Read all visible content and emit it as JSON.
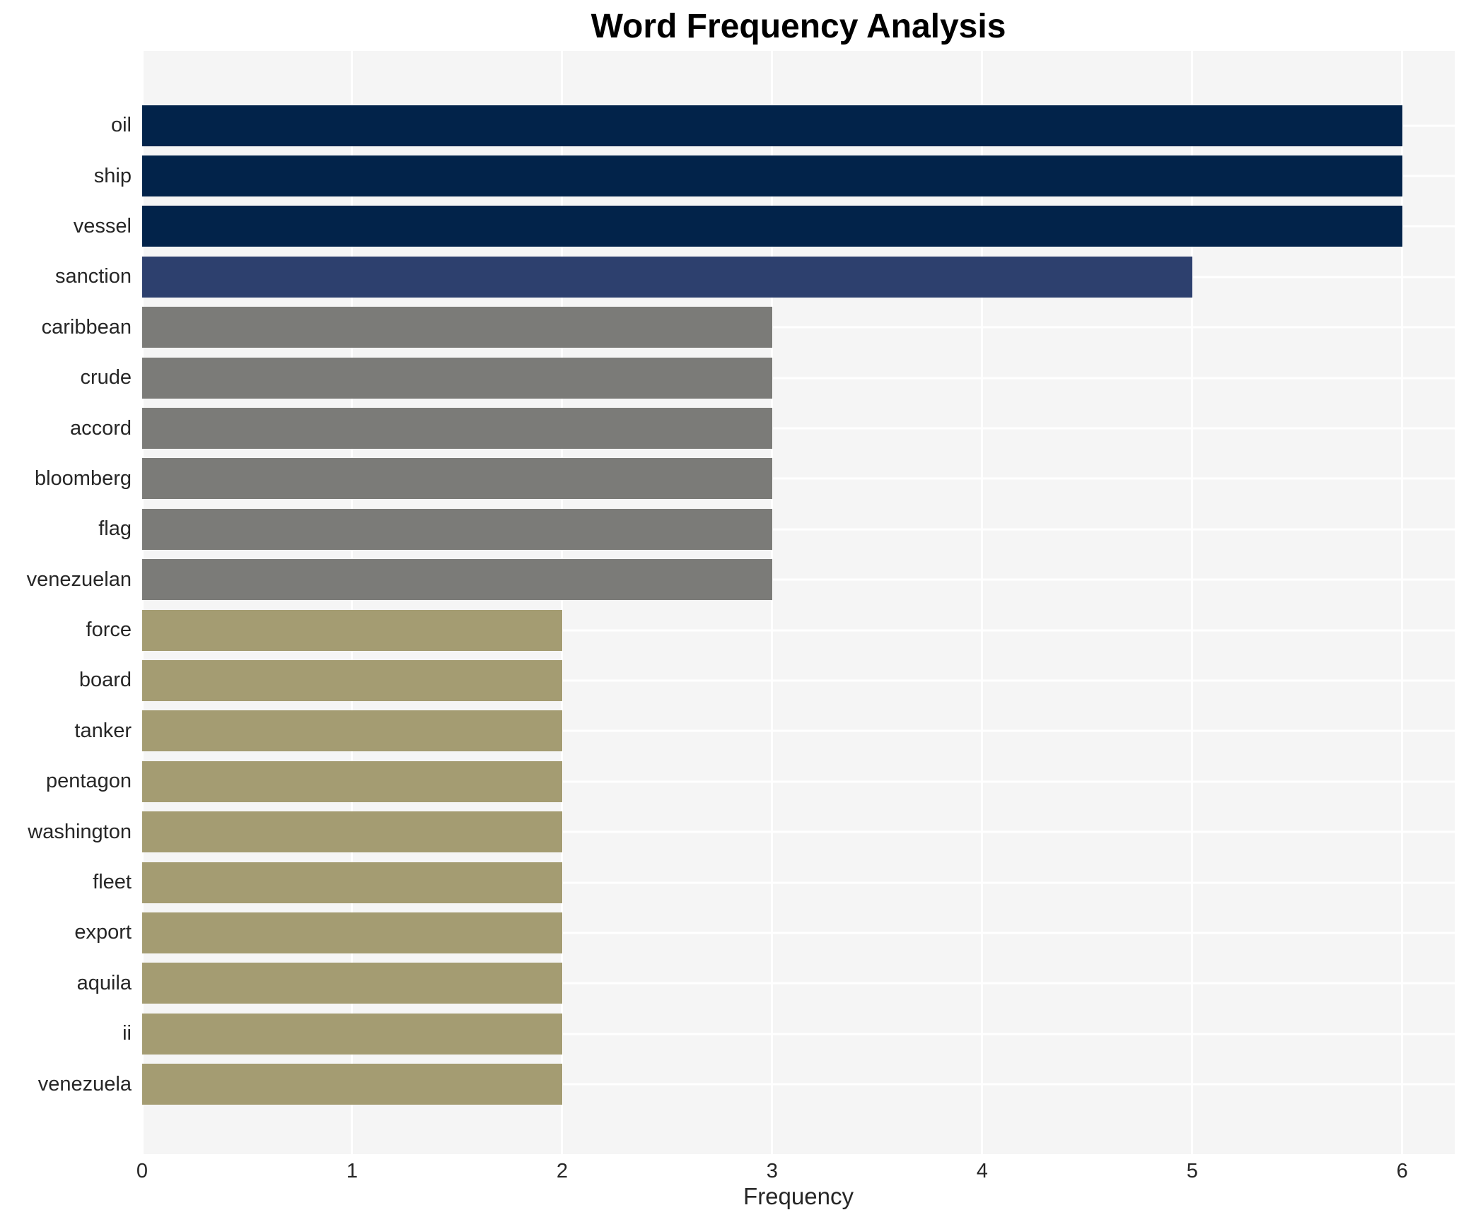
{
  "chart_data": {
    "type": "bar",
    "orientation": "horizontal",
    "title": "Word Frequency Analysis",
    "xlabel": "Frequency",
    "ylabel": "",
    "categories": [
      "oil",
      "ship",
      "vessel",
      "sanction",
      "caribbean",
      "crude",
      "accord",
      "bloomberg",
      "flag",
      "venezuelan",
      "force",
      "board",
      "tanker",
      "pentagon",
      "washington",
      "fleet",
      "export",
      "aquila",
      "ii",
      "venezuela"
    ],
    "values": [
      6,
      6,
      6,
      5,
      3,
      3,
      3,
      3,
      3,
      3,
      2,
      2,
      2,
      2,
      2,
      2,
      2,
      2,
      2,
      2
    ],
    "xticks": [
      0,
      1,
      2,
      3,
      4,
      5,
      6
    ],
    "xlim": [
      0,
      6.25
    ],
    "grid": true,
    "legend": false,
    "color_by_value": {
      "6": "#02234a",
      "5": "#2d406e",
      "3": "#7b7b78",
      "2": "#a49c72"
    },
    "plot_bg_color": "#f5f5f5",
    "grid_color": "#ffffff",
    "text_color": "#262626",
    "title_color": "#000000"
  }
}
